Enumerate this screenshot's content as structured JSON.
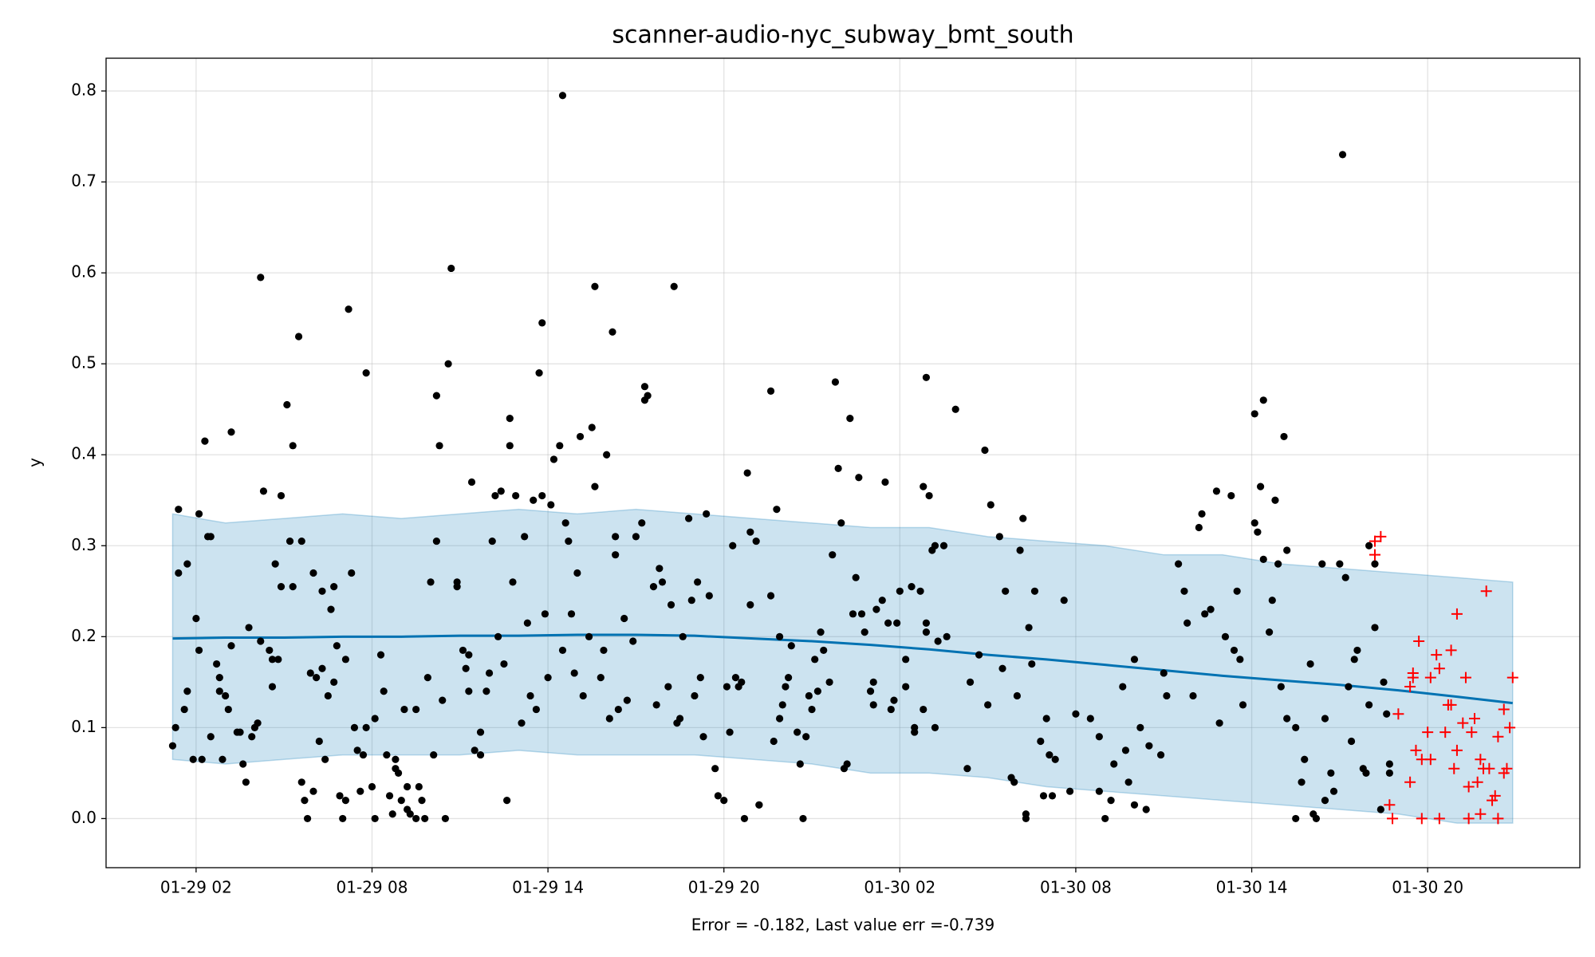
{
  "chart_data": {
    "type": "line",
    "title": "scanner-audio-nyc_subway_bmt_south",
    "xlabel": "Error = -0.182, Last value err =-0.739",
    "ylabel": "y",
    "grid": true,
    "xlim": [
      -1.07,
      49.19
    ],
    "ylim": [
      -0.054,
      0.836
    ],
    "xticks": [
      {
        "value": 2,
        "label": "01-29 02"
      },
      {
        "value": 8,
        "label": "01-29 08"
      },
      {
        "value": 14,
        "label": "01-29 14"
      },
      {
        "value": 20,
        "label": "01-29 20"
      },
      {
        "value": 26,
        "label": "01-30 02"
      },
      {
        "value": 32,
        "label": "01-30 08"
      },
      {
        "value": 38,
        "label": "01-30 14"
      },
      {
        "value": 44,
        "label": "01-30 20"
      }
    ],
    "yticks": [
      {
        "value": 0,
        "label": "0.0"
      },
      0.1,
      0.2,
      0.3,
      0.4,
      0.5,
      0.6,
      0.7,
      0.8
    ],
    "series": [
      {
        "type": "scatter",
        "marker": "dot",
        "color": "#000000",
        "x": [
          1.2,
          1.3,
          1.4,
          1.4,
          1.6,
          1.7,
          1.7,
          1.9,
          2.0,
          2.1,
          2.1,
          2.2,
          2.3,
          2.4,
          2.5,
          2.5,
          2.7,
          2.8,
          2.8,
          2.9,
          3.0,
          3.1,
          3.2,
          3.2,
          3.4,
          3.5,
          3.6,
          3.7,
          3.8,
          3.9,
          4.0,
          4.1,
          4.2,
          4.2,
          4.3,
          4.5,
          4.6,
          4.6,
          4.7,
          4.8,
          4.9,
          4.9,
          5.1,
          5.2,
          5.3,
          5.3,
          5.5,
          5.6,
          5.6,
          5.7,
          5.8,
          5.9,
          6.0,
          6.0,
          6.1,
          6.2,
          6.3,
          6.3,
          6.4,
          6.5,
          6.6,
          6.7,
          6.7,
          6.8,
          6.9,
          7.0,
          7.1,
          7.1,
          7.2,
          7.3,
          7.4,
          7.5,
          7.6,
          7.7,
          7.8,
          7.8,
          8.0,
          8.1,
          8.1,
          8.3,
          8.4,
          8.5,
          8.6,
          8.7,
          8.8,
          8.8,
          8.9,
          9.0,
          9.1,
          9.2,
          9.2,
          9.3,
          9.5,
          9.5,
          9.6,
          9.7,
          9.8,
          9.9,
          10.0,
          10.1,
          10.2,
          10.2,
          10.3,
          10.4,
          10.5,
          10.6,
          10.7,
          10.9,
          10.9,
          11.1,
          11.2,
          11.3,
          11.3,
          11.4,
          11.5,
          11.7,
          11.7,
          11.9,
          12.0,
          12.1,
          12.2,
          12.3,
          12.4,
          12.5,
          12.6,
          12.7,
          12.7,
          12.8,
          12.9,
          13.1,
          13.2,
          13.3,
          13.4,
          13.5,
          13.6,
          13.7,
          13.8,
          13.8,
          13.9,
          14.0,
          14.1,
          14.2,
          14.4,
          14.5,
          14.5,
          14.6,
          14.7,
          14.8,
          14.9,
          15.0,
          15.1,
          15.2,
          15.4,
          15.5,
          15.6,
          15.6,
          15.8,
          15.9,
          16.0,
          16.1,
          16.2,
          16.3,
          16.3,
          16.4,
          16.6,
          16.7,
          16.9,
          17.0,
          17.2,
          17.3,
          17.3,
          17.4,
          17.6,
          17.7,
          17.8,
          17.9,
          18.1,
          18.2,
          18.3,
          18.4,
          18.5,
          18.6,
          18.8,
          18.9,
          19.0,
          19.1,
          19.2,
          19.3,
          19.4,
          19.5,
          19.7,
          19.8,
          20.0,
          20.1,
          20.2,
          20.3,
          20.4,
          20.5,
          20.6,
          20.7,
          20.8,
          20.9,
          20.9,
          21.1,
          21.2,
          21.2,
          21.6,
          21.6,
          21.7,
          21.8,
          21.9,
          21.9,
          22.0,
          22.1,
          22.2,
          22.3,
          22.5,
          22.6,
          22.7,
          22.8,
          22.9,
          23.0,
          23.1,
          23.2,
          23.3,
          23.4,
          23.6,
          23.7,
          23.8,
          23.9,
          24.0,
          24.1,
          24.2,
          24.3,
          24.4,
          24.5,
          24.6,
          24.7,
          24.8,
          25.0,
          25.1,
          25.1,
          25.2,
          25.4,
          25.5,
          25.6,
          25.7,
          25.8,
          25.9,
          26.0,
          26.2,
          26.2,
          26.4,
          26.5,
          26.5,
          26.7,
          26.8,
          26.9,
          26.9,
          27.1,
          27.2,
          27.3,
          26.9,
          27.9,
          28.9,
          26.8,
          27.0,
          29.1,
          30.2,
          29.4,
          30.1,
          27.5,
          29.6,
          30.6,
          31.6,
          30.4,
          27.6,
          28.7,
          29.5,
          30.5,
          28.4,
          30.0,
          29.0,
          31.0,
          27.2,
          32.0,
          32.5,
          30.8,
          33.7,
          31.1,
          31.3,
          28.3,
          29.8,
          29.9,
          30.9,
          31.2,
          30.3,
          30.3,
          31.8,
          32.8,
          33.2,
          34.4,
          33.0,
          34.0,
          35.0,
          33.6,
          32.8,
          34.2,
          34.5,
          34.9,
          35.1,
          33.3,
          33.8,
          34.0,
          35.5,
          35.7,
          35.8,
          36.0,
          36.2,
          36.3,
          36.4,
          36.6,
          36.8,
          36.9,
          37.1,
          37.3,
          37.4,
          37.5,
          37.6,
          37.7,
          38.1,
          38.1,
          38.2,
          38.3,
          38.4,
          38.4,
          38.6,
          38.7,
          38.8,
          38.9,
          39.0,
          39.1,
          39.2,
          39.2,
          39.5,
          39.5,
          39.7,
          39.8,
          40.0,
          40.1,
          40.2,
          40.4,
          40.5,
          40.5,
          40.7,
          40.8,
          41.0,
          41.1,
          41.2,
          41.3,
          41.4,
          41.5,
          41.6,
          41.8,
          41.9,
          42.0,
          42.0,
          42.2,
          42.2,
          42.4,
          42.5,
          42.6,
          42.7,
          42.7
        ],
        "values": [
          0.08,
          0.1,
          0.34,
          0.27,
          0.12,
          0.14,
          0.28,
          0.065,
          0.22,
          0.335,
          0.185,
          0.065,
          0.415,
          0.31,
          0.31,
          0.09,
          0.17,
          0.155,
          0.14,
          0.065,
          0.135,
          0.12,
          0.425,
          0.19,
          0.095,
          0.095,
          0.06,
          0.04,
          0.21,
          0.09,
          0.1,
          0.105,
          0.195,
          0.595,
          0.36,
          0.185,
          0.175,
          0.145,
          0.28,
          0.175,
          0.355,
          0.255,
          0.455,
          0.305,
          0.255,
          0.41,
          0.53,
          0.305,
          0.04,
          0.02,
          0.0,
          0.16,
          0.03,
          0.27,
          0.155,
          0.085,
          0.25,
          0.165,
          0.065,
          0.135,
          0.23,
          0.15,
          0.255,
          0.19,
          0.025,
          0.0,
          0.02,
          0.175,
          0.56,
          0.27,
          0.1,
          0.075,
          0.03,
          0.07,
          0.49,
          0.1,
          0.035,
          0.0,
          0.11,
          0.18,
          0.14,
          0.07,
          0.025,
          0.005,
          0.065,
          0.055,
          0.05,
          0.02,
          0.12,
          0.035,
          0.01,
          0.005,
          0.12,
          0.0,
          0.035,
          0.02,
          0.0,
          0.155,
          0.26,
          0.07,
          0.305,
          0.465,
          0.41,
          0.13,
          0.0,
          0.5,
          0.605,
          0.26,
          0.255,
          0.185,
          0.165,
          0.14,
          0.18,
          0.37,
          0.075,
          0.07,
          0.095,
          0.14,
          0.16,
          0.305,
          0.355,
          0.2,
          0.36,
          0.17,
          0.02,
          0.41,
          0.44,
          0.26,
          0.355,
          0.105,
          0.31,
          0.215,
          0.135,
          0.35,
          0.12,
          0.49,
          0.545,
          0.355,
          0.225,
          0.155,
          0.345,
          0.395,
          0.41,
          0.185,
          0.795,
          0.325,
          0.305,
          0.225,
          0.16,
          0.27,
          0.42,
          0.135,
          0.2,
          0.43,
          0.365,
          0.585,
          0.155,
          0.185,
          0.4,
          0.11,
          0.535,
          0.29,
          0.31,
          0.12,
          0.22,
          0.13,
          0.195,
          0.31,
          0.325,
          0.475,
          0.46,
          0.465,
          0.255,
          0.125,
          0.275,
          0.26,
          0.145,
          0.235,
          0.585,
          0.105,
          0.11,
          0.2,
          0.33,
          0.24,
          0.135,
          0.26,
          0.155,
          0.09,
          0.335,
          0.245,
          0.055,
          0.025,
          0.02,
          0.145,
          0.095,
          0.3,
          0.155,
          0.145,
          0.15,
          0.0,
          0.38,
          0.315,
          0.235,
          0.305,
          0.015,
          0.015,
          0.47,
          0.245,
          0.085,
          0.34,
          0.2,
          0.11,
          0.125,
          0.145,
          0.155,
          0.19,
          0.095,
          0.06,
          0.0,
          0.09,
          0.135,
          0.12,
          0.175,
          0.14,
          0.205,
          0.185,
          0.15,
          0.29,
          0.48,
          0.385,
          0.325,
          0.055,
          0.06,
          0.44,
          0.225,
          0.265,
          0.375,
          0.225,
          0.205,
          0.14,
          0.125,
          0.15,
          0.23,
          0.24,
          0.37,
          0.215,
          0.12,
          0.13,
          0.215,
          0.25,
          0.145,
          0.175,
          0.255,
          0.1,
          0.095,
          0.25,
          0.12,
          0.215,
          0.205,
          0.295,
          0.3,
          0.195,
          0.485,
          0.45,
          0.405,
          0.365,
          0.355,
          0.345,
          0.33,
          0.31,
          0.295,
          0.3,
          0.25,
          0.25,
          0.24,
          0.21,
          0.2,
          0.18,
          0.165,
          0.17,
          0.15,
          0.135,
          0.125,
          0.11,
          0.1,
          0.115,
          0.11,
          0.085,
          0.075,
          0.07,
          0.065,
          0.055,
          0.045,
          0.04,
          0.025,
          0.025,
          0.005,
          0.0,
          0.03,
          0.03,
          0.02,
          0.01,
          0.0,
          0.175,
          0.16,
          0.145,
          0.09,
          0.1,
          0.08,
          0.07,
          0.135,
          0.06,
          0.04,
          0.015,
          0.28,
          0.25,
          0.215,
          0.135,
          0.32,
          0.335,
          0.225,
          0.23,
          0.36,
          0.105,
          0.2,
          0.355,
          0.185,
          0.25,
          0.175,
          0.125,
          0.325,
          0.445,
          0.315,
          0.365,
          0.46,
          0.285,
          0.205,
          0.24,
          0.35,
          0.28,
          0.145,
          0.42,
          0.295,
          0.11,
          0.1,
          0.0,
          0.04,
          0.065,
          0.17,
          0.005,
          0.0,
          0.28,
          0.11,
          0.02,
          0.05,
          0.03,
          0.28,
          0.73,
          0.265,
          0.145,
          0.085,
          0.175,
          0.185,
          0.055,
          0.05,
          0.125,
          0.3,
          0.21,
          0.28,
          0.01,
          0.15,
          0.115,
          0.05,
          0.06
        ]
      },
      {
        "type": "scatter",
        "marker": "plus",
        "color": "#ff0000",
        "x": [
          42.2,
          42.2,
          42.4,
          43.7,
          43.5,
          43.4,
          43.5,
          43.0,
          42.7,
          42.8,
          43.4,
          43.6,
          43.8,
          44.0,
          44.1,
          44.1,
          44.3,
          44.4,
          44.6,
          44.7,
          44.8,
          44.8,
          45.0,
          44.9,
          45.0,
          45.2,
          45.3,
          45.4,
          45.4,
          45.5,
          45.6,
          45.7,
          45.8,
          45.8,
          45.9,
          46.0,
          46.1,
          46.2,
          46.3,
          46.4,
          46.4,
          46.6,
          46.6,
          46.7,
          46.8,
          46.9,
          43.8,
          44.4
        ],
        "values": [
          0.305,
          0.29,
          0.31,
          0.195,
          0.16,
          0.145,
          0.155,
          0.115,
          0.015,
          0.0,
          0.04,
          0.075,
          0.065,
          0.095,
          0.065,
          0.155,
          0.18,
          0.165,
          0.095,
          0.125,
          0.185,
          0.125,
          0.225,
          0.055,
          0.075,
          0.105,
          0.155,
          0.035,
          0.0,
          0.095,
          0.11,
          0.04,
          0.065,
          0.005,
          0.055,
          0.25,
          0.055,
          0.02,
          0.025,
          0.0,
          0.09,
          0.05,
          0.12,
          0.055,
          0.1,
          0.155,
          0.0,
          0.0
        ]
      },
      {
        "type": "line",
        "color": "#0072b2",
        "band_color": "#0072b2",
        "x": [
          1.2,
          3,
          5,
          7,
          9,
          11,
          13,
          15,
          17,
          19,
          21,
          23,
          25,
          27,
          29,
          31,
          33,
          35,
          37,
          39,
          41,
          43,
          45,
          46.9
        ],
        "values": [
          0.198,
          0.199,
          0.199,
          0.2,
          0.2,
          0.201,
          0.201,
          0.202,
          0.202,
          0.201,
          0.198,
          0.195,
          0.191,
          0.186,
          0.18,
          0.175,
          0.169,
          0.163,
          0.157,
          0.152,
          0.147,
          0.141,
          0.134,
          0.127
        ],
        "upper": [
          0.335,
          0.325,
          0.33,
          0.335,
          0.33,
          0.335,
          0.34,
          0.335,
          0.34,
          0.335,
          0.33,
          0.325,
          0.32,
          0.32,
          0.31,
          0.305,
          0.3,
          0.29,
          0.29,
          0.28,
          0.275,
          0.27,
          0.265,
          0.26
        ],
        "lower": [
          0.065,
          0.06,
          0.065,
          0.07,
          0.07,
          0.07,
          0.075,
          0.07,
          0.07,
          0.07,
          0.065,
          0.06,
          0.05,
          0.05,
          0.045,
          0.035,
          0.03,
          0.025,
          0.02,
          0.015,
          0.01,
          0.005,
          -0.005,
          -0.005
        ]
      }
    ]
  }
}
